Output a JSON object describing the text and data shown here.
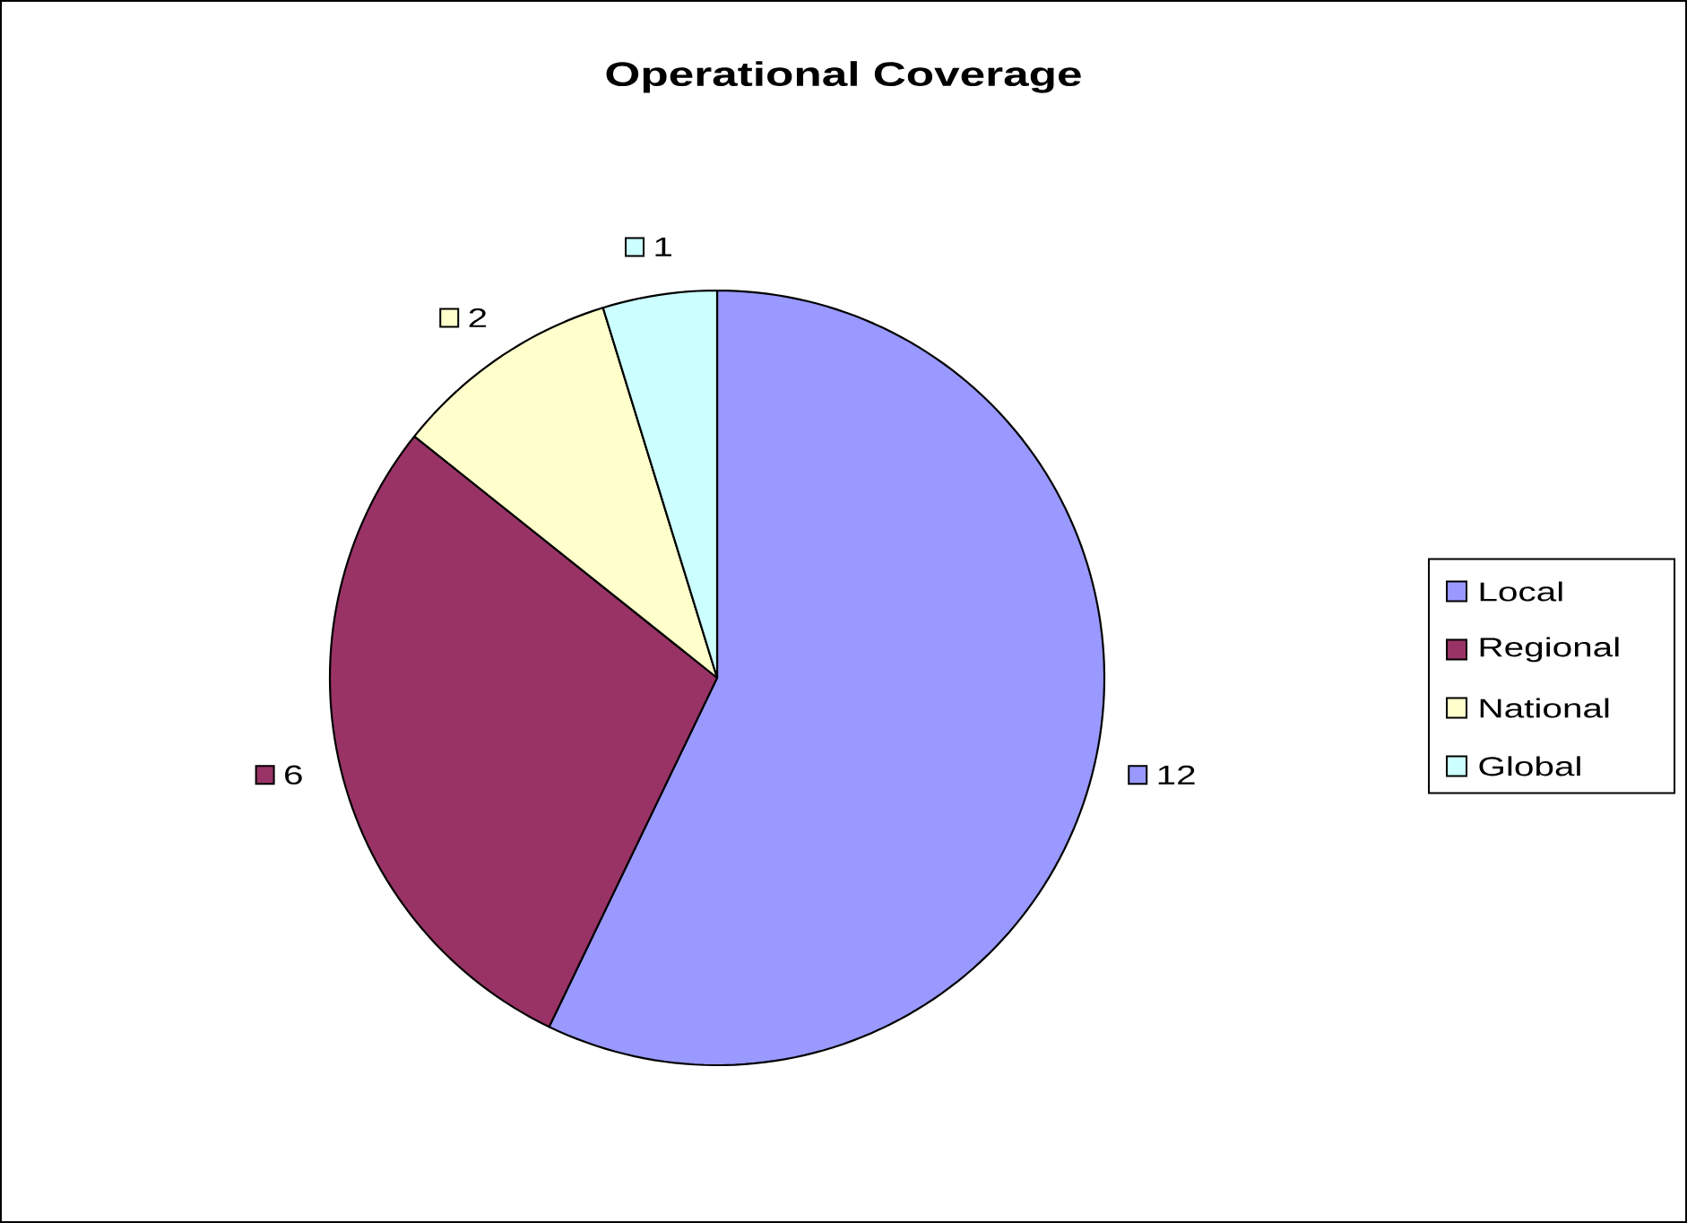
{
  "chart_data": {
    "type": "pie",
    "title": "Operational Coverage",
    "categories": [
      "Local",
      "Regional",
      "National",
      "Global"
    ],
    "values": [
      12,
      6,
      2,
      1
    ],
    "colors": [
      "#9999ff",
      "#993366",
      "#ffffcc",
      "#ccffff"
    ],
    "data_labels": true,
    "legend": "right"
  }
}
